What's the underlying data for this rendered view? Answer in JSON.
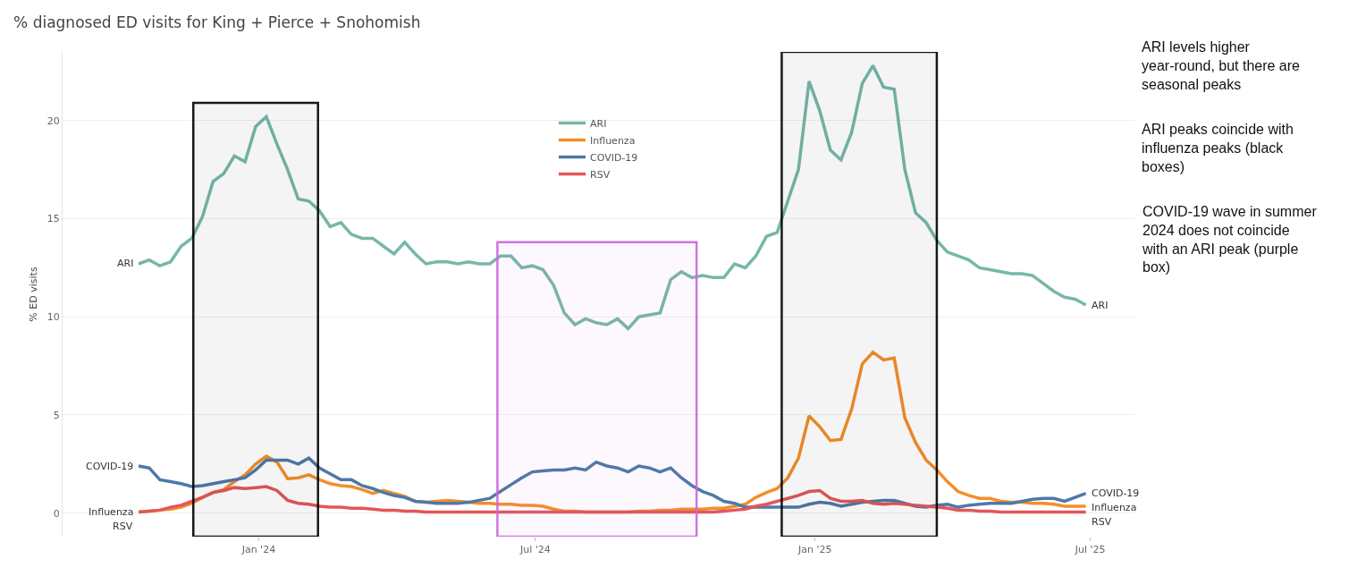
{
  "chart_data": {
    "type": "line",
    "title": "% diagnosed ED visits for King + Pierce + Snohomish",
    "ylabel": "% ED visits",
    "x": [
      "2023-10-14",
      "2023-10-21",
      "2023-10-28",
      "2023-11-04",
      "2023-11-11",
      "2023-11-18",
      "2023-11-25",
      "2023-12-02",
      "2023-12-09",
      "2023-12-16",
      "2023-12-23",
      "2023-12-30",
      "2024-01-06",
      "2024-01-13",
      "2024-01-20",
      "2024-01-27",
      "2024-02-03",
      "2024-02-10",
      "2024-02-17",
      "2024-02-24",
      "2024-03-02",
      "2024-03-09",
      "2024-03-16",
      "2024-03-23",
      "2024-03-30",
      "2024-04-06",
      "2024-04-13",
      "2024-04-20",
      "2024-04-27",
      "2024-05-04",
      "2024-05-11",
      "2024-05-18",
      "2024-05-25",
      "2024-06-01",
      "2024-06-08",
      "2024-06-15",
      "2024-06-22",
      "2024-06-29",
      "2024-07-06",
      "2024-07-13",
      "2024-07-20",
      "2024-07-27",
      "2024-08-03",
      "2024-08-10",
      "2024-08-17",
      "2024-08-24",
      "2024-08-31",
      "2024-09-07",
      "2024-09-14",
      "2024-09-21",
      "2024-09-28",
      "2024-10-05",
      "2024-10-12",
      "2024-10-19",
      "2024-10-26",
      "2024-11-02",
      "2024-11-09",
      "2024-11-16",
      "2024-11-23",
      "2024-11-30",
      "2024-12-07",
      "2024-12-14",
      "2024-12-21",
      "2024-12-28",
      "2025-01-04",
      "2025-01-11",
      "2025-01-18",
      "2025-01-25",
      "2025-02-01",
      "2025-02-08",
      "2025-02-15",
      "2025-02-22",
      "2025-03-01",
      "2025-03-08",
      "2025-03-15",
      "2025-03-22",
      "2025-03-29",
      "2025-04-05",
      "2025-04-12",
      "2025-04-19",
      "2025-04-26",
      "2025-05-03",
      "2025-05-10",
      "2025-05-17",
      "2025-05-24",
      "2025-05-31",
      "2025-06-07",
      "2025-06-14",
      "2025-06-21",
      "2025-06-28"
    ],
    "series": [
      {
        "name": "ARI",
        "color": "#76b7aa",
        "values": [
          12.7,
          12.9,
          12.6,
          12.8,
          13.6,
          14.0,
          15.1,
          16.9,
          17.3,
          18.2,
          17.9,
          19.7,
          20.2,
          18.8,
          17.5,
          16.0,
          15.9,
          15.4,
          14.6,
          14.8,
          14.2,
          14.0,
          14.0,
          13.6,
          13.2,
          13.8,
          13.2,
          12.7,
          12.8,
          12.8,
          12.7,
          12.8,
          12.7,
          12.7,
          13.1,
          13.1,
          12.5,
          12.6,
          12.4,
          11.6,
          10.2,
          9.6,
          9.9,
          9.7,
          9.6,
          9.9,
          9.4,
          10.0,
          10.1,
          10.2,
          11.9,
          12.3,
          12.0,
          12.1,
          12.0,
          12.0,
          12.7,
          12.5,
          13.1,
          14.1,
          14.3,
          15.9,
          17.5,
          22.0,
          20.5,
          18.5,
          18.0,
          19.4,
          21.9,
          22.8,
          21.7,
          21.6,
          17.5,
          15.3,
          14.8,
          13.9,
          13.3,
          13.1,
          12.9,
          12.5,
          12.4,
          12.3,
          12.2,
          12.2,
          12.1,
          11.7,
          11.3,
          11.0,
          10.9,
          10.6
        ]
      },
      {
        "name": "Influenza",
        "color": "#f28e2b",
        "values": [
          0.05,
          0.1,
          0.15,
          0.2,
          0.3,
          0.5,
          0.8,
          1.05,
          1.2,
          1.6,
          1.95,
          2.5,
          2.9,
          2.6,
          1.75,
          1.8,
          1.95,
          1.7,
          1.5,
          1.4,
          1.35,
          1.2,
          1.0,
          1.15,
          1.0,
          0.85,
          0.6,
          0.55,
          0.6,
          0.65,
          0.6,
          0.55,
          0.5,
          0.5,
          0.45,
          0.45,
          0.4,
          0.4,
          0.35,
          0.2,
          0.1,
          0.1,
          0.05,
          0.05,
          0.05,
          0.05,
          0.05,
          0.1,
          0.1,
          0.15,
          0.15,
          0.2,
          0.2,
          0.2,
          0.25,
          0.25,
          0.35,
          0.45,
          0.8,
          1.05,
          1.25,
          1.8,
          2.8,
          4.95,
          4.4,
          3.7,
          3.75,
          5.3,
          7.6,
          8.2,
          7.8,
          7.9,
          4.85,
          3.6,
          2.7,
          2.2,
          1.6,
          1.1,
          0.9,
          0.75,
          0.75,
          0.6,
          0.55,
          0.55,
          0.5,
          0.5,
          0.45,
          0.35,
          0.35,
          0.35
        ]
      },
      {
        "name": "COVID-19",
        "color": "#4e79a7",
        "values": [
          2.4,
          2.3,
          1.7,
          1.6,
          1.5,
          1.35,
          1.4,
          1.5,
          1.6,
          1.7,
          1.8,
          2.2,
          2.7,
          2.7,
          2.7,
          2.5,
          2.8,
          2.3,
          2.0,
          1.7,
          1.7,
          1.4,
          1.25,
          1.05,
          0.9,
          0.8,
          0.6,
          0.55,
          0.5,
          0.5,
          0.5,
          0.55,
          0.65,
          0.75,
          1.1,
          1.45,
          1.8,
          2.1,
          2.15,
          2.2,
          2.2,
          2.3,
          2.2,
          2.6,
          2.4,
          2.3,
          2.1,
          2.4,
          2.3,
          2.1,
          2.3,
          1.8,
          1.4,
          1.1,
          0.9,
          0.6,
          0.5,
          0.3,
          0.3,
          0.3,
          0.3,
          0.3,
          0.3,
          0.45,
          0.55,
          0.5,
          0.35,
          0.45,
          0.55,
          0.6,
          0.65,
          0.65,
          0.5,
          0.35,
          0.3,
          0.4,
          0.45,
          0.3,
          0.4,
          0.45,
          0.5,
          0.5,
          0.5,
          0.6,
          0.7,
          0.75,
          0.75,
          0.6,
          0.8,
          1.0
        ]
      },
      {
        "name": "RSV",
        "color": "#e15759",
        "values": [
          0.05,
          0.1,
          0.15,
          0.3,
          0.4,
          0.6,
          0.8,
          1.05,
          1.15,
          1.3,
          1.25,
          1.3,
          1.35,
          1.15,
          0.65,
          0.5,
          0.45,
          0.35,
          0.3,
          0.3,
          0.25,
          0.25,
          0.2,
          0.15,
          0.15,
          0.1,
          0.1,
          0.05,
          0.05,
          0.05,
          0.05,
          0.05,
          0.05,
          0.05,
          0.05,
          0.05,
          0.05,
          0.05,
          0.05,
          0.05,
          0.05,
          0.05,
          0.05,
          0.05,
          0.05,
          0.05,
          0.05,
          0.05,
          0.05,
          0.05,
          0.05,
          0.05,
          0.05,
          0.05,
          0.05,
          0.1,
          0.15,
          0.2,
          0.35,
          0.45,
          0.6,
          0.75,
          0.9,
          1.1,
          1.15,
          0.75,
          0.6,
          0.6,
          0.65,
          0.5,
          0.45,
          0.5,
          0.45,
          0.4,
          0.35,
          0.3,
          0.25,
          0.15,
          0.15,
          0.1,
          0.1,
          0.05,
          0.05,
          0.05,
          0.05,
          0.05,
          0.05,
          0.05,
          0.05,
          0.05
        ]
      }
    ],
    "xlim": [
      "2023-08-25",
      "2025-07-30"
    ],
    "xticks": [
      {
        "value": "2024-01-01",
        "label": "Jan '24"
      },
      {
        "value": "2024-07-01",
        "label": "Jul '24"
      },
      {
        "value": "2025-01-01",
        "label": "Jan '25"
      },
      {
        "value": "2025-07-01",
        "label": "Jul '25"
      }
    ],
    "ylim": [
      -1.2,
      23.5
    ],
    "yticks": [
      0,
      5,
      10,
      15,
      20
    ],
    "grid": "y",
    "legend": "top",
    "line_style": "solid",
    "bands": [
      {
        "axis": "x",
        "from": "2023-11-19",
        "to": "2024-02-09",
        "color": "#000000"
      },
      {
        "axis": "x",
        "from": "2024-06-06",
        "to": "2024-10-15",
        "color": "#cc66dd"
      },
      {
        "axis": "x",
        "from": "2024-12-10",
        "to": "2025-03-22",
        "color": "#000000"
      }
    ],
    "annotations": [
      "ARI levels higher year-round, but there are seasonal peaks",
      "ARI peaks coincide with influenza peaks (black boxes)",
      "COVID-19 wave in summer 2024 does not coincide with an ARI peak (purple box)"
    ]
  }
}
